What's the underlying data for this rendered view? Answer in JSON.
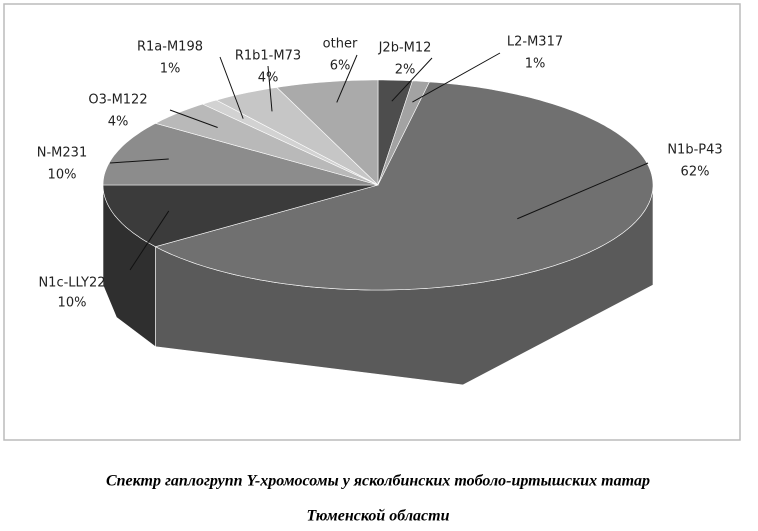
{
  "chart_data": {
    "type": "pie",
    "categories": [
      "J2b-M12",
      "L2-M317",
      "N1b-P43",
      "N1c-LLY22",
      "N-M231",
      "O3-M122",
      "R1a-M198",
      "R1b1-M73",
      "other"
    ],
    "values": [
      2,
      1,
      62,
      10,
      10,
      4,
      1,
      4,
      6
    ],
    "value_labels": [
      "2%",
      "1%",
      "62%",
      "10%",
      "10%",
      "4%",
      "1%",
      "4%",
      "6%"
    ],
    "colors": [
      "#4d4d4d",
      "#a3a3a3",
      "#707070",
      "#3b3b3b",
      "#8c8c8c",
      "#b9b9b9",
      "#d2d2d2",
      "#c6c6c6",
      "#aaaaaa"
    ],
    "caption": [
      "Спектр гаплогрупп Y-хромосомы у ясколбинских тоболо-иртышских татар",
      "Тюменской области"
    ]
  }
}
